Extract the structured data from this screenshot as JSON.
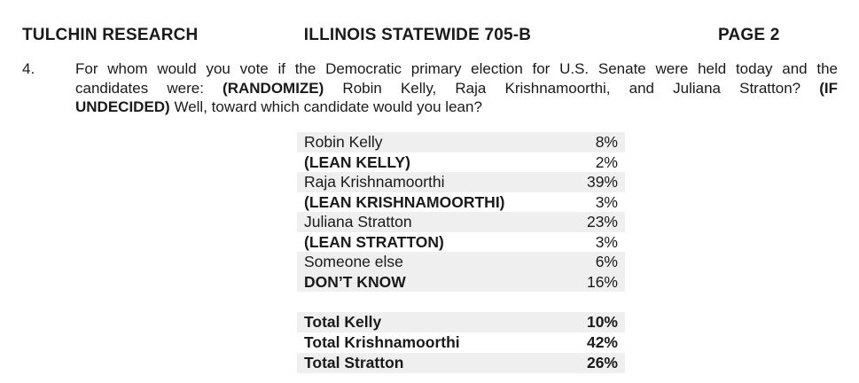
{
  "header": {
    "left": "TULCHIN RESEARCH",
    "center": "ILLINOIS STATEWIDE 705-B",
    "right": "PAGE 2"
  },
  "question": {
    "number": "4.",
    "lines": [
      {
        "justify": true,
        "segments": [
          {
            "text": "For whom would you vote if the Democratic primary election for U.S. Senate were held today and the",
            "bold": false
          }
        ]
      },
      {
        "justify": true,
        "segments": [
          {
            "text": "candidates were: ",
            "bold": false
          },
          {
            "text": "(RANDOMIZE)",
            "bold": true
          },
          {
            "text": " Robin Kelly, Raja Krishnamoorthi, and Juliana Stratton? ",
            "bold": false
          },
          {
            "text": "(IF",
            "bold": true
          }
        ]
      },
      {
        "justify": false,
        "segments": [
          {
            "text": "UNDECIDED)",
            "bold": true
          },
          {
            "text": " Well, toward which candidate would you lean?",
            "bold": false
          }
        ]
      }
    ]
  },
  "table": {
    "rows": [
      {
        "label": "Robin Kelly",
        "value": "8%",
        "label_bold": false,
        "value_bold": false,
        "shaded": true
      },
      {
        "label": "(LEAN KELLY)",
        "value": "2%",
        "label_bold": true,
        "value_bold": false,
        "shaded": false
      },
      {
        "label": "Raja Krishnamoorthi",
        "value": "39%",
        "label_bold": false,
        "value_bold": false,
        "shaded": true
      },
      {
        "label": "(LEAN KRISHNAMOORTHI)",
        "value": "3%",
        "label_bold": true,
        "value_bold": false,
        "shaded": false
      },
      {
        "label": "Juliana Stratton",
        "value": "23%",
        "label_bold": false,
        "value_bold": false,
        "shaded": true
      },
      {
        "label": "(LEAN STRATTON)",
        "value": "3%",
        "label_bold": true,
        "value_bold": false,
        "shaded": false
      },
      {
        "label": "Someone else",
        "value": "6%",
        "label_bold": false,
        "value_bold": false,
        "shaded": true
      },
      {
        "label": "DON’T KNOW",
        "value": "16%",
        "label_bold": true,
        "value_bold": false,
        "shaded": true
      }
    ],
    "total_rows": [
      {
        "label": "Total Kelly",
        "value": "10%",
        "label_bold": true,
        "value_bold": true,
        "shaded": true
      },
      {
        "label": "Total Krishnamoorthi",
        "value": "42%",
        "label_bold": true,
        "value_bold": true,
        "shaded": false
      },
      {
        "label": "Total Stratton",
        "value": "26%",
        "label_bold": true,
        "value_bold": true,
        "shaded": true
      }
    ]
  },
  "colors": {
    "row_shade": "#efefef",
    "text": "#1a1a1a",
    "background": "#ffffff"
  }
}
